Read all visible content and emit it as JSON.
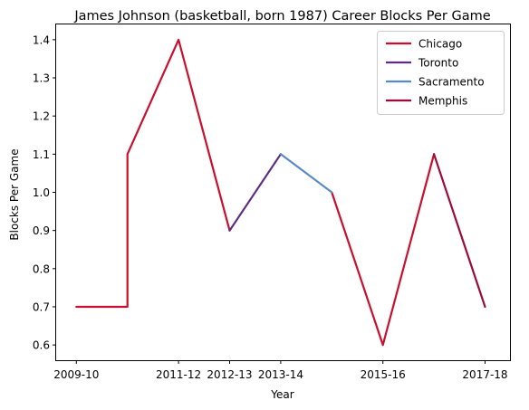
{
  "chart_data": {
    "type": "line",
    "title": "James Johnson (basketball, born 1987) Career Blocks Per Game",
    "xlabel": "Year",
    "ylabel": "Blocks Per Game",
    "x_tick_labels": [
      "2009-10",
      "2011-12",
      "2012-13",
      "2013-14",
      "2015-16",
      "2017-18"
    ],
    "y_ticks": [
      "0.6",
      "0.7",
      "0.8",
      "0.9",
      "1.0",
      "1.1",
      "1.2",
      "1.3",
      "1.4"
    ],
    "ylim": [
      0.56,
      1.44
    ],
    "grid": false,
    "legend_position": "top-right",
    "series": [
      {
        "name": "Chicago",
        "color": "#c8102e",
        "segments": [
          [
            {
              "x": "2009-10",
              "y": 0.7
            },
            {
              "x": "2010-11",
              "y": 0.7
            },
            {
              "x": "2010-11",
              "y": 1.1
            },
            {
              "x": "2011-12",
              "y": 1.4
            },
            {
              "x": "2012-13",
              "y": 0.9
            }
          ],
          [
            {
              "x": "2014-15",
              "y": 1.0
            },
            {
              "x": "2015-16",
              "y": 0.6
            },
            {
              "x": "2016-17",
              "y": 1.1
            }
          ]
        ]
      },
      {
        "name": "Toronto",
        "color": "#5c2d82",
        "segments": [
          [
            {
              "x": "2012-13",
              "y": 0.9
            },
            {
              "x": "2013-14",
              "y": 1.1
            }
          ]
        ]
      },
      {
        "name": "Sacramento",
        "color": "#5a8ac6",
        "segments": [
          [
            {
              "x": "2013-14",
              "y": 1.1
            },
            {
              "x": "2014-15",
              "y": 1.0
            }
          ]
        ]
      },
      {
        "name": "Memphis",
        "color": "#9b0a3d",
        "segments": [
          [
            {
              "x": "2016-17",
              "y": 1.1
            },
            {
              "x": "2017-18",
              "y": 0.7
            }
          ]
        ]
      }
    ]
  }
}
